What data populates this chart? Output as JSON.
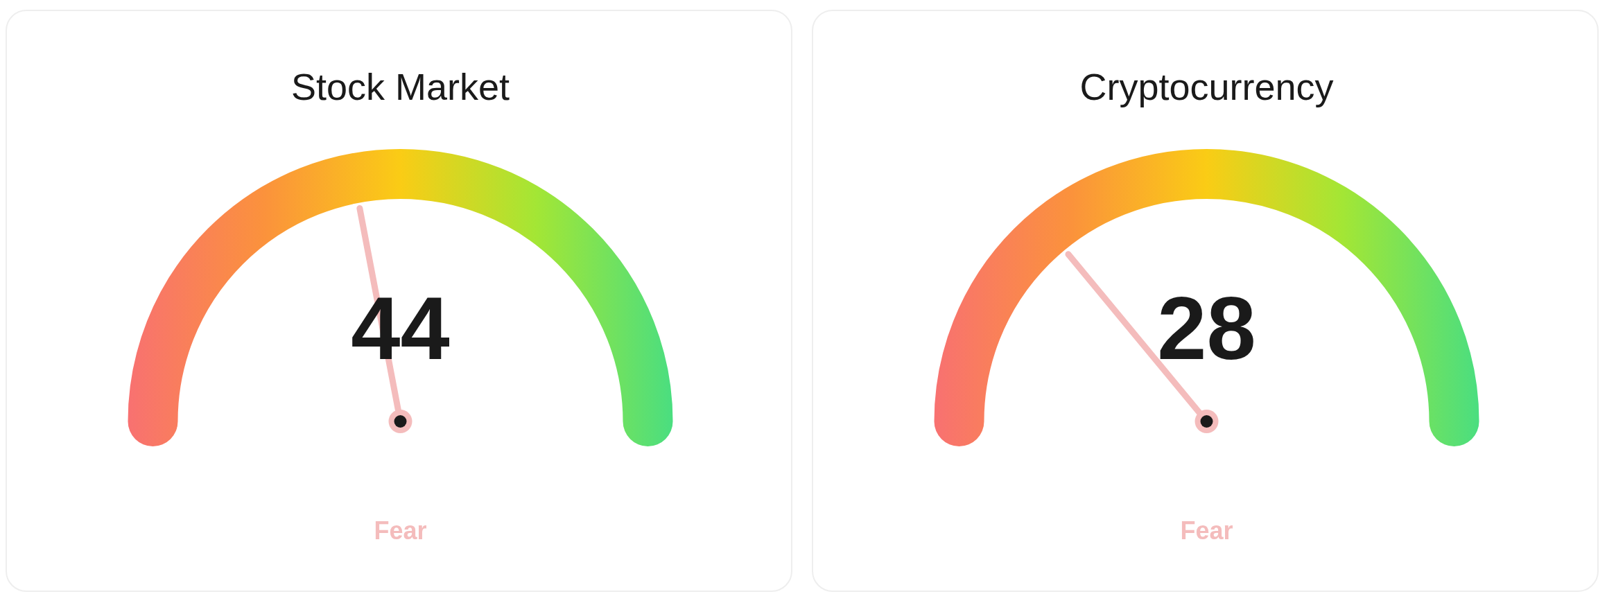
{
  "chart_data": [
    {
      "type": "other",
      "title": "Stock Market",
      "values": [
        44
      ],
      "data_labels": true,
      "annotations": [
        "Fear"
      ]
    },
    {
      "type": "other",
      "title": "Cryptocurrency",
      "values": [
        28
      ],
      "data_labels": true,
      "annotations": [
        "Fear"
      ]
    }
  ]
}
